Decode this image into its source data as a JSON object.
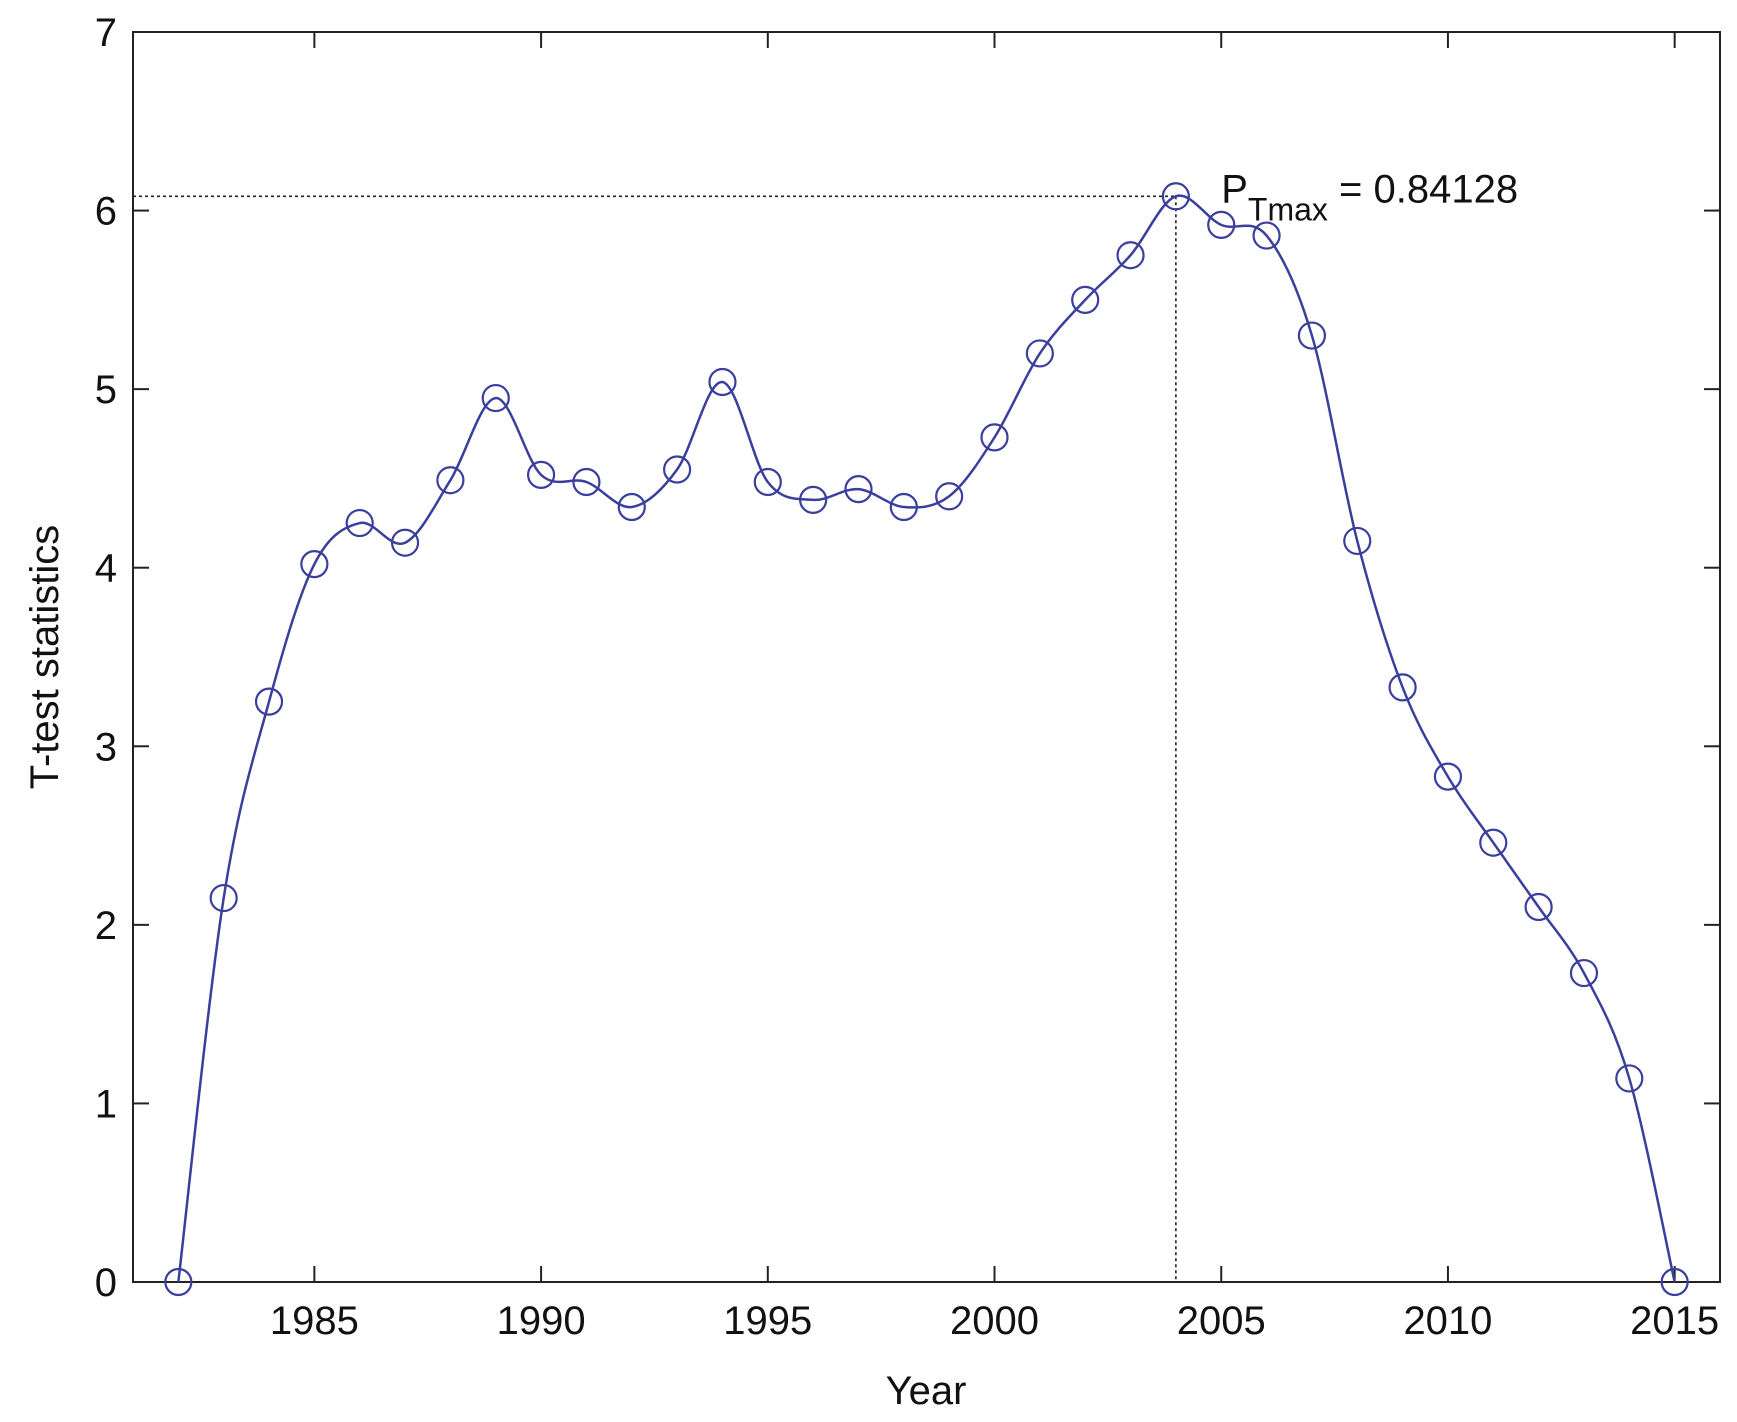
{
  "chart_data": {
    "type": "line",
    "title": "",
    "xlabel": "Year",
    "ylabel": "T-test statistics",
    "xlim": [
      1981,
      2016
    ],
    "ylim": [
      0,
      7
    ],
    "x_ticks": [
      1985,
      1990,
      1995,
      2000,
      2005,
      2010,
      2015
    ],
    "y_ticks": [
      0,
      1,
      2,
      3,
      4,
      5,
      6,
      7
    ],
    "grid": false,
    "marker": "circle",
    "line_color": "#3a3f9c",
    "series": [
      {
        "x": [
          1982,
          1983,
          1984,
          1985,
          1986,
          1987,
          1988,
          1989,
          1990,
          1991,
          1992,
          1993,
          1994,
          1995,
          1996,
          1997,
          1998,
          1999,
          2000,
          2001,
          2002,
          2003,
          2004,
          2005,
          2006,
          2007,
          2008,
          2009,
          2010,
          2011,
          2012,
          2013,
          2014,
          2015
        ],
        "values": [
          0,
          2.15,
          3.25,
          4.02,
          4.25,
          4.14,
          4.49,
          4.95,
          4.52,
          4.48,
          4.34,
          4.55,
          5.04,
          4.48,
          4.38,
          4.44,
          4.34,
          4.4,
          4.73,
          5.2,
          5.5,
          5.75,
          6.08,
          5.92,
          5.86,
          5.3,
          4.15,
          3.33,
          2.83,
          2.46,
          2.1,
          1.73,
          1.14,
          0
        ]
      }
    ],
    "reference_lines": {
      "x": 2004,
      "y": 6.08,
      "style": "dotted"
    },
    "annotation": {
      "base": "P",
      "subscript": "Tmax",
      "text": " = 0.84128",
      "x": 2005,
      "y": 6.08
    }
  }
}
